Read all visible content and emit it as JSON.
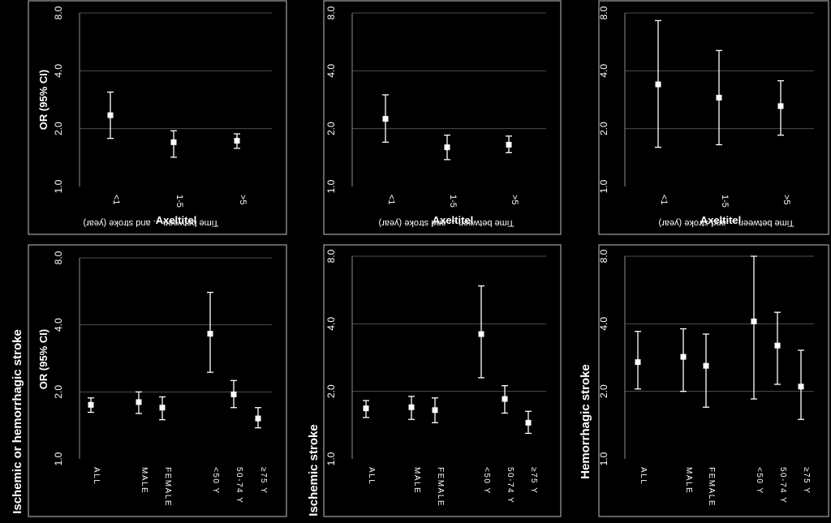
{
  "chart_data": [
    {
      "type": "scatter",
      "subtype": "error-bar",
      "ylabel": "OR (95% CI)",
      "xlabel": "Time between ... and stroke (year)",
      "overlay_label": "Axeltitel",
      "y_scale": "log2",
      "ylim": [
        1.0,
        8.0
      ],
      "yticks": [
        "1.0",
        "2.0",
        "4.0",
        "8.0"
      ],
      "categories": [
        "<1",
        "1-5",
        ">5"
      ],
      "points": [
        {
          "category": "<1",
          "or": 2.35,
          "lo": 1.78,
          "hi": 3.1
        },
        {
          "category": "1-5",
          "or": 1.7,
          "lo": 1.42,
          "hi": 1.95
        },
        {
          "category": ">5",
          "or": 1.73,
          "lo": 1.58,
          "hi": 1.88
        }
      ]
    },
    {
      "type": "scatter",
      "subtype": "error-bar",
      "ylabel": "",
      "xlabel": "Time between ... and stroke (year)",
      "overlay_label": "Axeltitel",
      "y_scale": "log2",
      "ylim": [
        1.0,
        8.0
      ],
      "yticks": [
        "1.0",
        "2.0",
        "4.0",
        "8.0"
      ],
      "categories": [
        "<1",
        "1-5",
        ">5"
      ],
      "points": [
        {
          "category": "<1",
          "or": 2.25,
          "lo": 1.7,
          "hi": 3.0
        },
        {
          "category": "1-5",
          "or": 1.6,
          "lo": 1.38,
          "hi": 1.85
        },
        {
          "category": ">5",
          "or": 1.65,
          "lo": 1.5,
          "hi": 1.83
        }
      ]
    },
    {
      "type": "scatter",
      "subtype": "error-bar",
      "ylabel": "",
      "xlabel": "Time between ... and stroke (year)",
      "overlay_label": "Axeltitel",
      "y_scale": "log2",
      "ylim": [
        1.0,
        8.0
      ],
      "yticks": [
        "1.0",
        "2.0",
        "4.0",
        "8.0"
      ],
      "categories": [
        "<1",
        "1-5",
        ">5"
      ],
      "points": [
        {
          "category": "<1",
          "or": 3.4,
          "lo": 1.6,
          "hi": 7.3
        },
        {
          "category": "1-5",
          "or": 2.9,
          "lo": 1.65,
          "hi": 5.1
        },
        {
          "category": ">5",
          "or": 2.62,
          "lo": 1.85,
          "hi": 3.55
        }
      ]
    },
    {
      "type": "scatter",
      "subtype": "error-bar",
      "title": "Ischemic or hemorrhagic stroke",
      "ylabel": "OR (95% CI)",
      "y_scale": "log2",
      "ylim": [
        1.0,
        8.0
      ],
      "yticks": [
        "1.0",
        "2.0",
        "4.0",
        "8.0"
      ],
      "categories": [
        "ALL",
        "MALE",
        "FEMALE",
        "<50 Y",
        "50-74 Y",
        "≥75 Y"
      ],
      "points": [
        {
          "category": "ALL",
          "or": 1.75,
          "lo": 1.62,
          "hi": 1.88
        },
        {
          "category": "MALE",
          "or": 1.8,
          "lo": 1.6,
          "hi": 2.0
        },
        {
          "category": "FEMALE",
          "or": 1.7,
          "lo": 1.5,
          "hi": 1.9
        },
        {
          "category": "<50 Y",
          "or": 3.65,
          "lo": 2.45,
          "hi": 5.6
        },
        {
          "category": "50-74 Y",
          "or": 1.95,
          "lo": 1.7,
          "hi": 2.25
        },
        {
          "category": "≥75 Y",
          "or": 1.52,
          "lo": 1.38,
          "hi": 1.7
        }
      ]
    },
    {
      "type": "scatter",
      "subtype": "error-bar",
      "title": "Ischemic stroke",
      "ylabel": "",
      "y_scale": "log2",
      "ylim": [
        1.0,
        8.0
      ],
      "yticks": [
        "1.0",
        "2.0",
        "4.0",
        "8.0"
      ],
      "categories": [
        "ALL",
        "MALE",
        "FEMALE",
        "<50 Y",
        "50-74 Y",
        "≥75 Y"
      ],
      "points": [
        {
          "category": "ALL",
          "or": 1.68,
          "lo": 1.53,
          "hi": 1.82
        },
        {
          "category": "MALE",
          "or": 1.7,
          "lo": 1.5,
          "hi": 1.9
        },
        {
          "category": "FEMALE",
          "or": 1.65,
          "lo": 1.45,
          "hi": 1.87
        },
        {
          "category": "<50 Y",
          "or": 3.6,
          "lo": 2.3,
          "hi": 5.9
        },
        {
          "category": "50-74 Y",
          "or": 1.85,
          "lo": 1.6,
          "hi": 2.12
        },
        {
          "category": "≥75 Y",
          "or": 1.45,
          "lo": 1.3,
          "hi": 1.63
        }
      ]
    },
    {
      "type": "scatter",
      "subtype": "error-bar",
      "title": "Hemorrhagic stroke",
      "ylabel": "",
      "y_scale": "log2",
      "ylim": [
        1.0,
        8.0
      ],
      "yticks": [
        "1.0",
        "2.0",
        "4.0",
        "8.0"
      ],
      "categories": [
        "ALL",
        "MALE",
        "FEMALE",
        "<50 Y",
        "50-74 Y",
        "≥75 Y"
      ],
      "points": [
        {
          "category": "ALL",
          "or": 2.7,
          "lo": 2.05,
          "hi": 3.7
        },
        {
          "category": "MALE",
          "or": 2.85,
          "lo": 2.0,
          "hi": 3.8
        },
        {
          "category": "FEMALE",
          "or": 2.6,
          "lo": 1.7,
          "hi": 3.6
        },
        {
          "category": "<50 Y",
          "or": 4.1,
          "lo": 1.85,
          "hi": 8.0
        },
        {
          "category": "50-74 Y",
          "or": 3.2,
          "lo": 2.15,
          "hi": 4.5
        },
        {
          "category": "≥75 Y",
          "or": 2.1,
          "lo": 1.5,
          "hi": 3.05
        }
      ]
    }
  ],
  "colors": {
    "background": "#000000",
    "panel_border": "#bfbfbf",
    "foreground": "#ffffff"
  }
}
